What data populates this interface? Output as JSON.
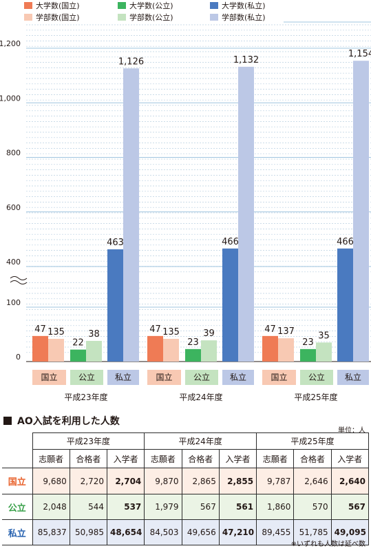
{
  "legend": [
    {
      "label": "大学数(国立)",
      "color": "#ef7b55"
    },
    {
      "label": "大学数(公立)",
      "color": "#3cb45f"
    },
    {
      "label": "大学数(私立)",
      "color": "#4a7ac0"
    },
    {
      "label": "学部数(国立)",
      "color": "#f8c9b3"
    },
    {
      "label": "学部数(公立)",
      "color": "#c4e3c0"
    },
    {
      "label": "学部数(私立)",
      "color": "#bcc8e6"
    }
  ],
  "chart_data": {
    "type": "bar",
    "groups": [
      "平成23年度",
      "平成24年度",
      "平成25年度"
    ],
    "categories": [
      "国立",
      "公立",
      "私立"
    ],
    "series": [
      {
        "name": "大学数(国立)",
        "values": [
          47,
          47,
          47
        ]
      },
      {
        "name": "学部数(国立)",
        "values": [
          135,
          135,
          137
        ]
      },
      {
        "name": "大学数(公立)",
        "values": [
          22,
          23,
          23
        ]
      },
      {
        "name": "学部数(公立)",
        "values": [
          38,
          39,
          35
        ]
      },
      {
        "name": "大学数(私立)",
        "values": [
          463,
          466,
          466
        ]
      },
      {
        "name": "学部数(私立)",
        "values": [
          1126,
          1132,
          1154
        ]
      }
    ],
    "value_labels": [
      [
        "47",
        "135",
        "22",
        "38",
        "463",
        "1,126"
      ],
      [
        "47",
        "135",
        "23",
        "39",
        "466",
        "1,132"
      ],
      [
        "47",
        "137",
        "23",
        "35",
        "466",
        "1,154"
      ]
    ],
    "y_ticks": [
      "0",
      "100",
      "400",
      "600",
      "800",
      "1,000",
      "1,200"
    ],
    "y_axis": "broken axis: 0–100 lower segment, 400–1,200 upper segment",
    "grid": true
  },
  "category_colors": {
    "国立": "#f8c9b3",
    "公立": "#c4e3c0",
    "私立": "#bcc8e6"
  },
  "table": {
    "title": "AO入試を利用した人数",
    "unit": "単位：人",
    "years": [
      "平成23年度",
      "平成24年度",
      "平成25年度"
    ],
    "columns": [
      "志願者",
      "合格者",
      "入学者"
    ],
    "rows": [
      {
        "label": "国立",
        "label_color": "#e8632e",
        "bg": "#fdeee5",
        "cells": [
          "9,680",
          "2,720",
          "2,704",
          "9,870",
          "2,865",
          "2,855",
          "9,787",
          "2,646",
          "2,640"
        ]
      },
      {
        "label": "公立",
        "label_color": "#3aa14b",
        "bg": "#ebf4e5",
        "cells": [
          "2,048",
          "544",
          "537",
          "1,979",
          "567",
          "561",
          "1,860",
          "570",
          "567"
        ]
      },
      {
        "label": "私立",
        "label_color": "#2a64b1",
        "bg": "#e6ebf6",
        "cells": [
          "85,837",
          "50,985",
          "48,654",
          "84,503",
          "49,656",
          "47,210",
          "89,455",
          "51,785",
          "49,095"
        ]
      }
    ],
    "note": "※いずれも人数は延べ数"
  }
}
